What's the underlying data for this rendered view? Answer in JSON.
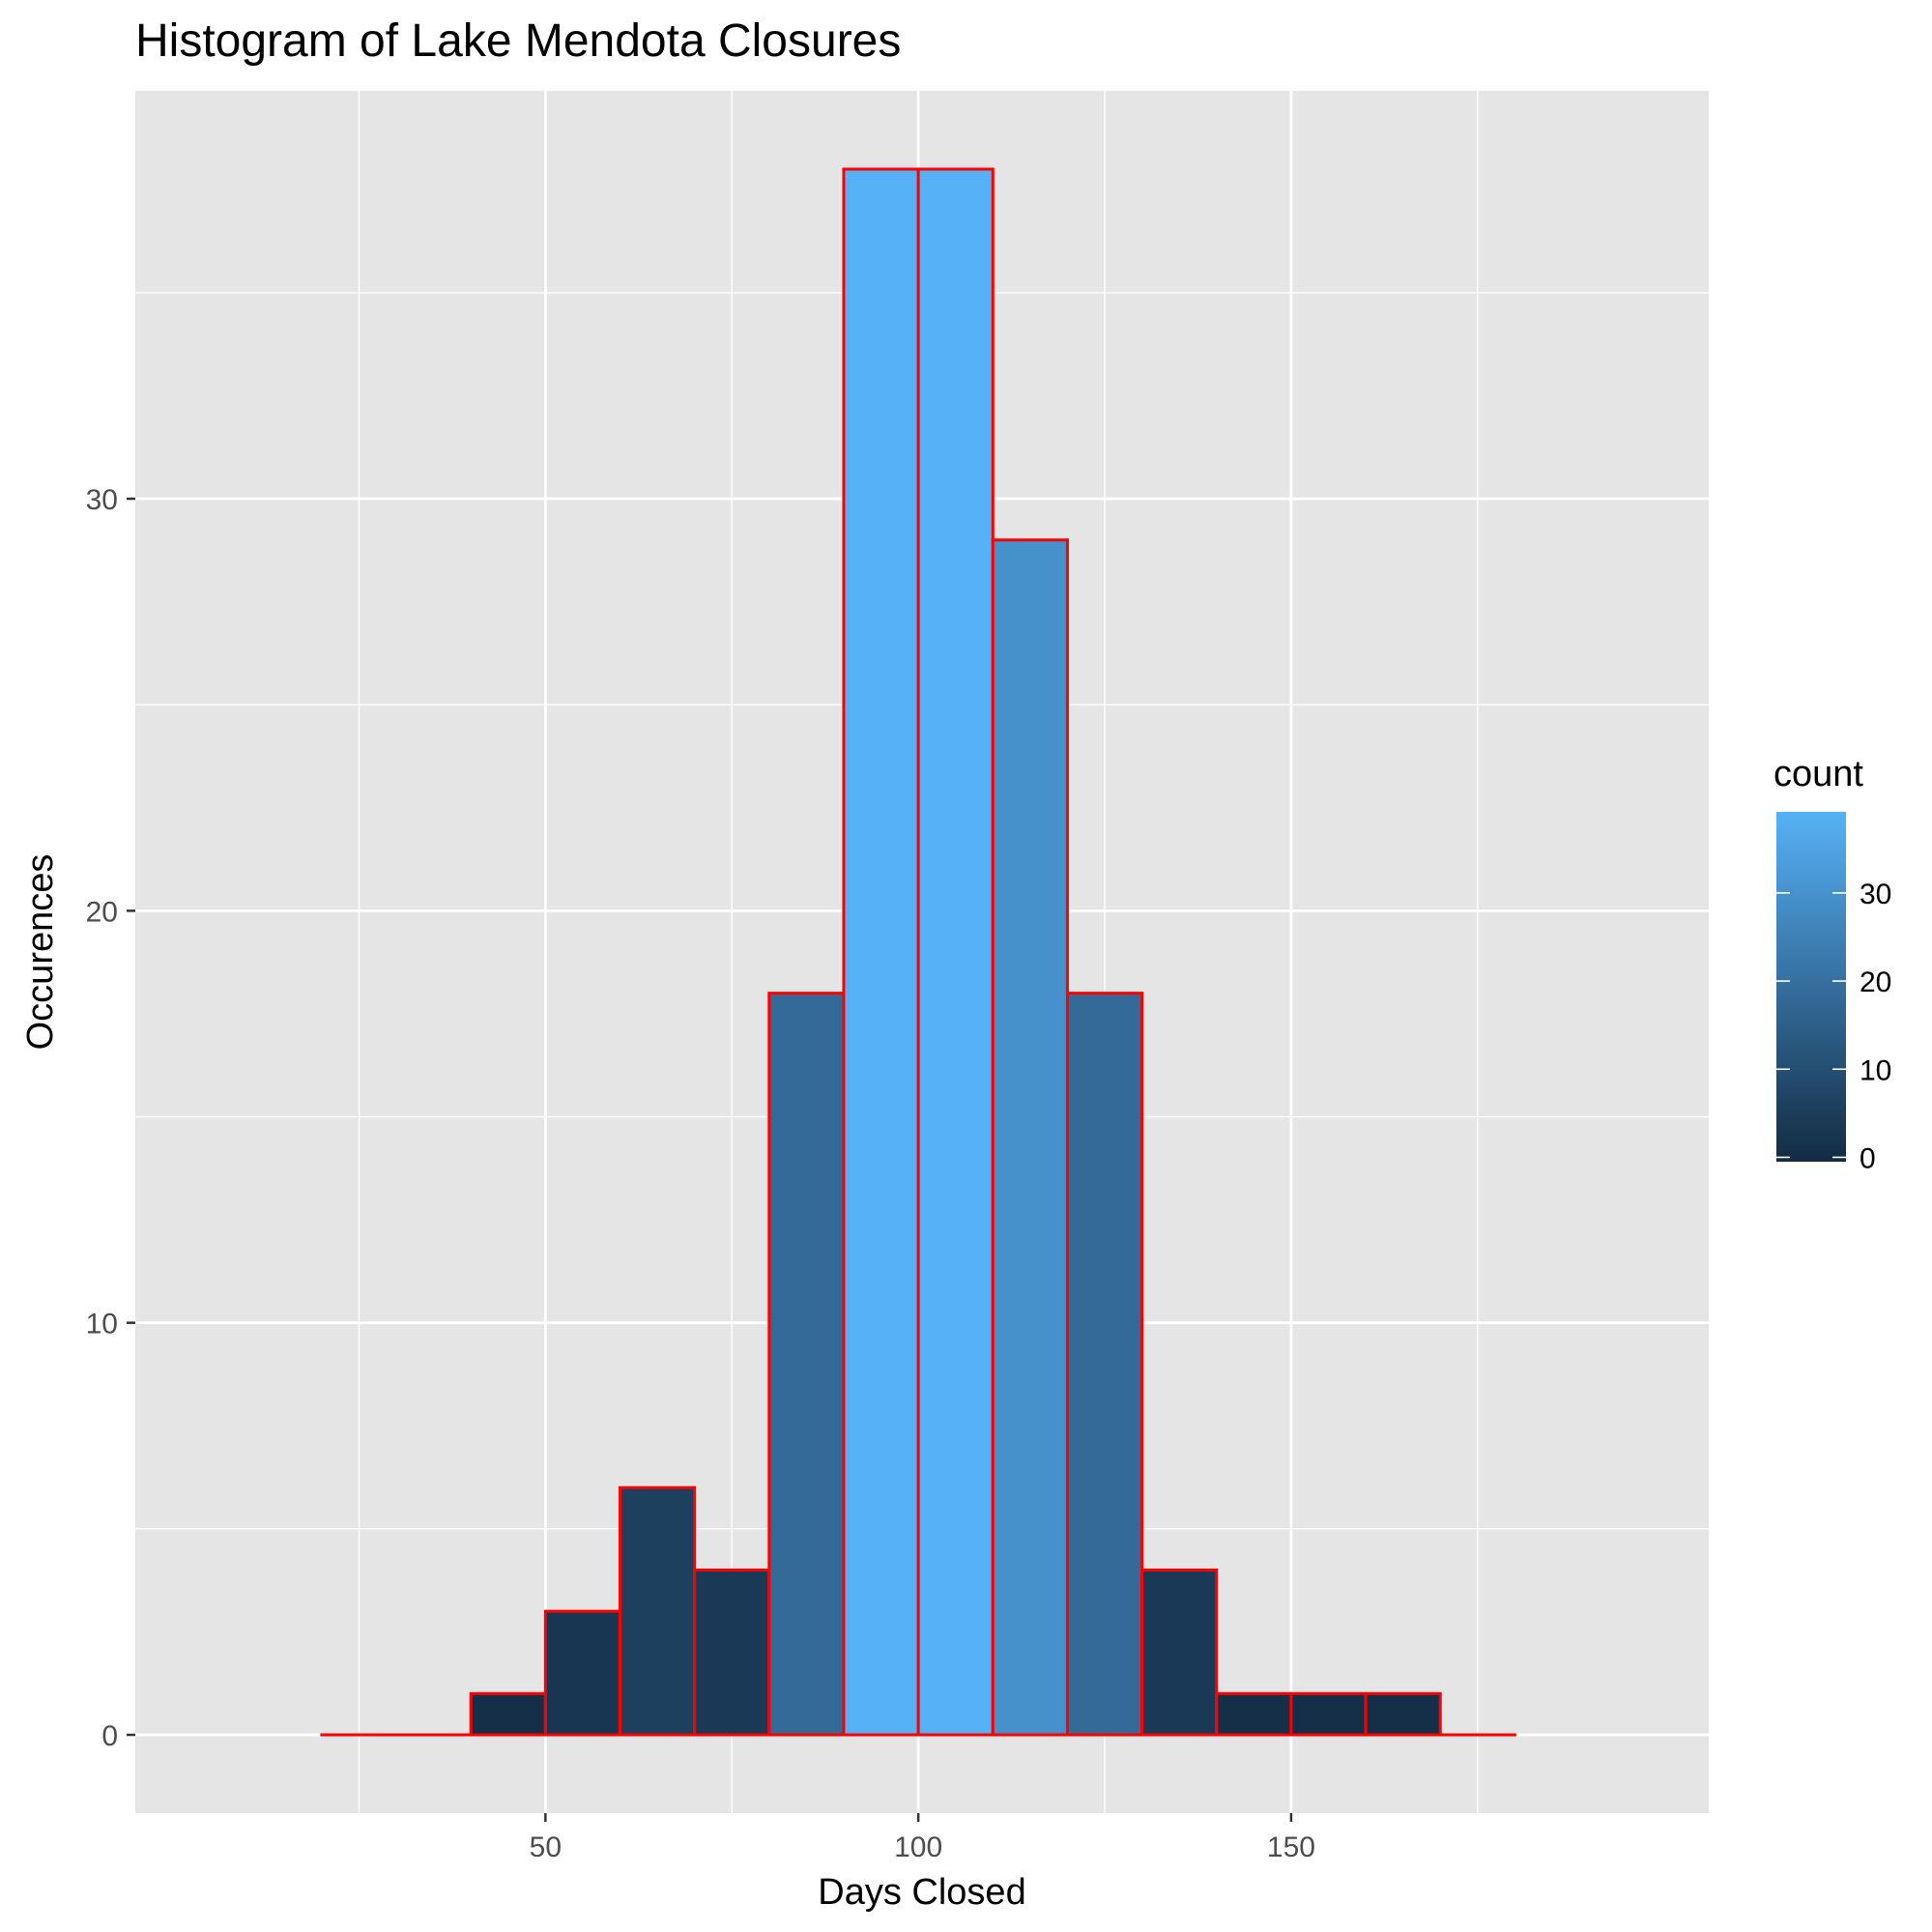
{
  "chart_data": {
    "type": "bar",
    "title": "Histogram of Lake Mendota Closures",
    "xlabel": "Days Closed",
    "ylabel": "Occurences",
    "bin_width": 10,
    "bin_starts": [
      20,
      30,
      40,
      50,
      60,
      70,
      80,
      90,
      100,
      110,
      120,
      130,
      140,
      150,
      160,
      170
    ],
    "values": [
      0,
      0,
      1,
      3,
      6,
      4,
      18,
      38,
      38,
      29,
      18,
      4,
      1,
      1,
      1,
      0
    ],
    "xlim": [
      -5,
      206
    ],
    "ylim": [
      -1.9,
      39.9
    ],
    "x_ticks": [
      50,
      100,
      150
    ],
    "x_tick_labels": [
      "50",
      "100",
      "150"
    ],
    "y_ticks": [
      0,
      10,
      20,
      30
    ],
    "y_tick_labels": [
      "0",
      "10",
      "20",
      "30"
    ],
    "grid": true,
    "bar_outline_color": "#ff0000",
    "fill_scale": {
      "low": "#132b43",
      "high": "#56b1f7",
      "min": 0,
      "max": 38
    },
    "legend": {
      "title": "count",
      "position": "right",
      "ticks": [
        0,
        10,
        20,
        30
      ],
      "tick_labels": [
        "0",
        "10",
        "20",
        "30"
      ]
    }
  }
}
